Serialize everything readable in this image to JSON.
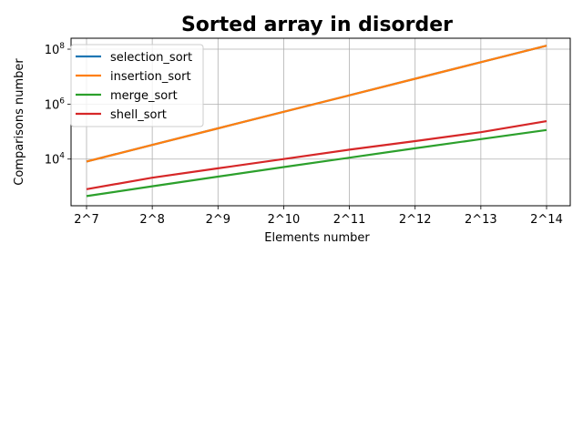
{
  "chart_data": {
    "type": "line",
    "title": "Sorted array in disorder",
    "xlabel": "Elements number",
    "ylabel": "Comparisons number",
    "y_scale": "log",
    "ylim": [
      200,
      250000000
    ],
    "grid": true,
    "legend_position": "top-left",
    "categories": [
      "2^7",
      "2^8",
      "2^9",
      "2^10",
      "2^11",
      "2^12",
      "2^13",
      "2^14"
    ],
    "y_ticks": [
      {
        "value": 10000,
        "base": "10",
        "exp": "4"
      },
      {
        "value": 1000000,
        "base": "10",
        "exp": "6"
      },
      {
        "value": 100000000,
        "base": "10",
        "exp": "8"
      }
    ],
    "series": [
      {
        "name": "selection_sort",
        "color": "#1f77b4",
        "values": [
          8128,
          32640,
          130816,
          523776,
          2096128,
          8386560,
          33550336,
          134209536
        ]
      },
      {
        "name": "insertion_sort",
        "color": "#ff7f0e",
        "values": [
          8128,
          32640,
          130816,
          523776,
          2096128,
          8386560,
          33550336,
          134209536
        ]
      },
      {
        "name": "merge_sort",
        "color": "#2ca02c",
        "values": [
          448,
          1024,
          2304,
          5120,
          11264,
          24576,
          53248,
          114688
        ]
      },
      {
        "name": "shell_sort",
        "color": "#d62728",
        "values": [
          800,
          2100,
          4600,
          10000,
          22000,
          45000,
          95000,
          240000
        ]
      }
    ]
  }
}
